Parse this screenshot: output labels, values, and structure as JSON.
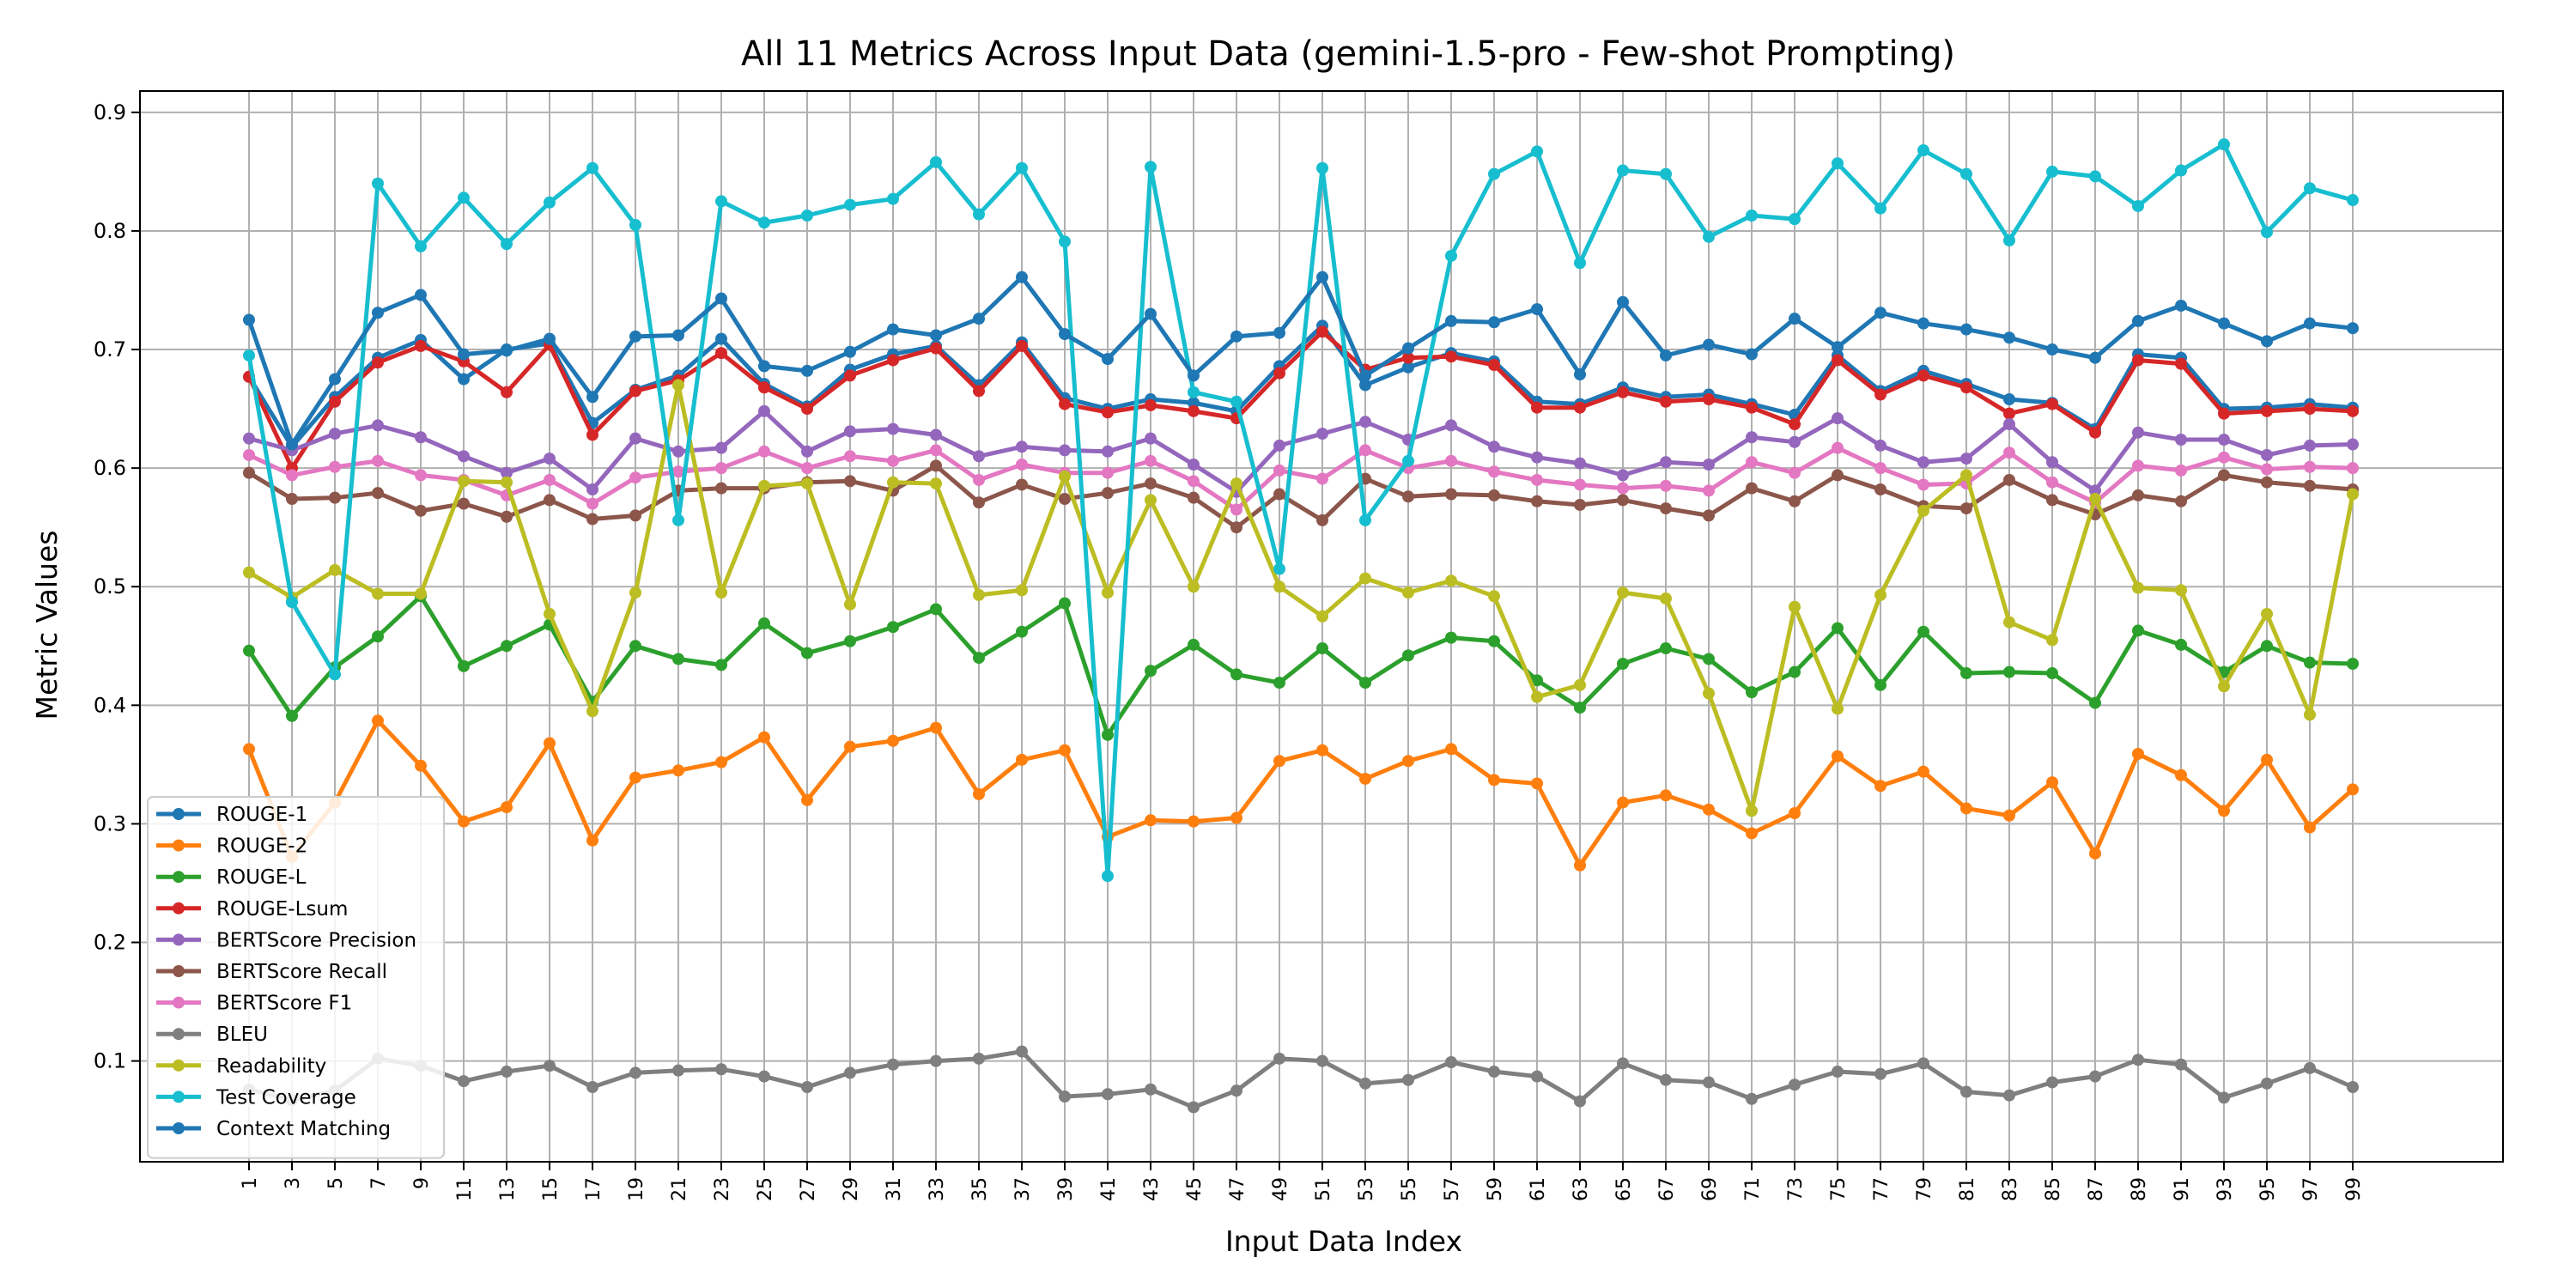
{
  "chart_data": {
    "type": "line",
    "title": "All 11 Metrics Across Input Data (gemini-1.5-pro - Few-shot Prompting)",
    "xlabel": "Input Data Index",
    "ylabel": "Metric Values",
    "ylim": [
      0.015,
      0.918
    ],
    "yticks": [
      "0.1",
      "0.2",
      "0.3",
      "0.4",
      "0.5",
      "0.6",
      "0.7",
      "0.8",
      "0.9"
    ],
    "grid": true,
    "legend_position": "lower-left",
    "x": [
      1,
      3,
      5,
      7,
      9,
      11,
      13,
      15,
      17,
      19,
      21,
      23,
      25,
      27,
      29,
      31,
      33,
      35,
      37,
      39,
      41,
      43,
      45,
      47,
      49,
      51,
      53,
      55,
      57,
      59,
      61,
      63,
      65,
      67,
      69,
      71,
      73,
      75,
      77,
      79,
      81,
      83,
      85,
      87,
      89,
      91,
      93,
      95,
      97,
      99
    ],
    "series": [
      {
        "name": "ROUGE-1",
        "color": "#1f77b4",
        "values": [
          0.677,
          0.618,
          0.66,
          0.693,
          0.708,
          0.675,
          0.7,
          0.705,
          0.638,
          0.666,
          0.678,
          0.709,
          0.671,
          0.652,
          0.683,
          0.696,
          0.703,
          0.67,
          0.706,
          0.659,
          0.65,
          0.658,
          0.655,
          0.648,
          0.686,
          0.72,
          0.67,
          0.685,
          0.697,
          0.69,
          0.656,
          0.654,
          0.668,
          0.66,
          0.662,
          0.654,
          0.645,
          0.695,
          0.665,
          0.682,
          0.671,
          0.658,
          0.655,
          0.633,
          0.696,
          0.693,
          0.65,
          0.651,
          0.654,
          0.651
        ]
      },
      {
        "name": "ROUGE-2",
        "color": "#ff7f0e",
        "values": [
          0.363,
          0.272,
          0.318,
          0.387,
          0.349,
          0.302,
          0.314,
          0.368,
          0.286,
          0.339,
          0.345,
          0.352,
          0.373,
          0.32,
          0.365,
          0.37,
          0.381,
          0.325,
          0.354,
          0.362,
          0.289,
          0.303,
          0.302,
          0.305,
          0.353,
          0.362,
          0.338,
          0.353,
          0.363,
          0.337,
          0.334,
          0.265,
          0.318,
          0.324,
          0.312,
          0.292,
          0.309,
          0.357,
          0.332,
          0.344,
          0.313,
          0.307,
          0.335,
          0.275,
          0.359,
          0.341,
          0.311,
          0.354,
          0.297,
          0.329
        ]
      },
      {
        "name": "ROUGE-L",
        "color": "#2ca02c",
        "values": [
          0.446,
          0.391,
          0.432,
          0.458,
          0.492,
          0.433,
          0.45,
          0.468,
          0.403,
          0.45,
          0.439,
          0.434,
          0.469,
          0.444,
          0.454,
          0.466,
          0.481,
          0.44,
          0.462,
          0.486,
          0.375,
          0.429,
          0.451,
          0.426,
          0.419,
          0.448,
          0.419,
          0.442,
          0.457,
          0.454,
          0.421,
          0.398,
          0.435,
          0.448,
          0.439,
          0.411,
          0.428,
          0.465,
          0.417,
          0.462,
          0.427,
          0.428,
          0.427,
          0.402,
          0.463,
          0.451,
          0.428,
          0.45,
          0.436,
          0.435
        ]
      },
      {
        "name": "ROUGE-Lsum",
        "color": "#d62728",
        "values": [
          0.677,
          0.6,
          0.656,
          0.689,
          0.703,
          0.69,
          0.664,
          0.704,
          0.628,
          0.665,
          0.674,
          0.697,
          0.668,
          0.65,
          0.678,
          0.691,
          0.701,
          0.665,
          0.703,
          0.654,
          0.647,
          0.653,
          0.648,
          0.642,
          0.68,
          0.715,
          0.683,
          0.693,
          0.694,
          0.687,
          0.651,
          0.651,
          0.664,
          0.656,
          0.658,
          0.651,
          0.637,
          0.691,
          0.662,
          0.678,
          0.668,
          0.646,
          0.654,
          0.63,
          0.691,
          0.688,
          0.646,
          0.648,
          0.65,
          0.648
        ]
      },
      {
        "name": "BERTScore Precision",
        "color": "#9467bd",
        "values": [
          0.625,
          0.615,
          0.629,
          0.636,
          0.626,
          0.61,
          0.596,
          0.608,
          0.582,
          0.625,
          0.614,
          0.617,
          0.648,
          0.614,
          0.631,
          0.633,
          0.628,
          0.61,
          0.618,
          0.615,
          0.614,
          0.625,
          0.603,
          0.58,
          0.619,
          0.629,
          0.639,
          0.624,
          0.636,
          0.618,
          0.609,
          0.604,
          0.594,
          0.605,
          0.603,
          0.626,
          0.622,
          0.642,
          0.619,
          0.605,
          0.608,
          0.637,
          0.605,
          0.581,
          0.63,
          0.624,
          0.624,
          0.611,
          0.619,
          0.62
        ]
      },
      {
        "name": "BERTScore Recall",
        "color": "#8c564b",
        "values": [
          0.596,
          0.574,
          0.575,
          0.579,
          0.564,
          0.57,
          0.559,
          0.573,
          0.557,
          0.56,
          0.581,
          0.583,
          0.583,
          0.588,
          0.589,
          0.581,
          0.602,
          0.571,
          0.586,
          0.574,
          0.579,
          0.587,
          0.575,
          0.55,
          0.578,
          0.556,
          0.591,
          0.576,
          0.578,
          0.577,
          0.572,
          0.569,
          0.573,
          0.566,
          0.56,
          0.583,
          0.572,
          0.594,
          0.582,
          0.568,
          0.566,
          0.59,
          0.573,
          0.561,
          0.577,
          0.572,
          0.594,
          0.588,
          0.585,
          0.582
        ]
      },
      {
        "name": "BERTScore F1",
        "color": "#e377c2",
        "values": [
          0.611,
          0.594,
          0.601,
          0.606,
          0.594,
          0.59,
          0.577,
          0.59,
          0.57,
          0.592,
          0.597,
          0.6,
          0.614,
          0.6,
          0.61,
          0.606,
          0.615,
          0.59,
          0.603,
          0.596,
          0.596,
          0.606,
          0.589,
          0.565,
          0.598,
          0.591,
          0.615,
          0.6,
          0.606,
          0.597,
          0.59,
          0.586,
          0.583,
          0.585,
          0.581,
          0.605,
          0.596,
          0.617,
          0.6,
          0.586,
          0.587,
          0.613,
          0.588,
          0.571,
          0.602,
          0.598,
          0.609,
          0.599,
          0.601,
          0.6
        ]
      },
      {
        "name": "BLEU",
        "color": "#7f7f7f",
        "values": [
          0.076,
          0.067,
          0.075,
          0.102,
          0.096,
          0.083,
          0.091,
          0.096,
          0.078,
          0.09,
          0.092,
          0.093,
          0.087,
          0.078,
          0.09,
          0.097,
          0.1,
          0.102,
          0.108,
          0.07,
          0.072,
          0.076,
          0.061,
          0.075,
          0.102,
          0.1,
          0.081,
          0.084,
          0.099,
          0.091,
          0.087,
          0.066,
          0.098,
          0.084,
          0.082,
          0.068,
          0.08,
          0.091,
          0.089,
          0.098,
          0.074,
          0.071,
          0.082,
          0.087,
          0.101,
          0.097,
          0.069,
          0.081,
          0.094,
          0.078
        ]
      },
      {
        "name": "Readability",
        "color": "#bcbd22",
        "values": [
          0.512,
          0.491,
          0.514,
          0.494,
          0.494,
          0.589,
          0.588,
          0.477,
          0.395,
          0.495,
          0.67,
          0.495,
          0.585,
          0.587,
          0.485,
          0.588,
          0.587,
          0.493,
          0.497,
          0.593,
          0.495,
          0.573,
          0.5,
          0.587,
          0.5,
          0.475,
          0.507,
          0.495,
          0.505,
          0.492,
          0.407,
          0.417,
          0.495,
          0.49,
          0.41,
          0.311,
          0.483,
          0.397,
          0.493,
          0.564,
          0.594,
          0.47,
          0.455,
          0.574,
          0.499,
          0.497,
          0.416,
          0.477,
          0.392,
          0.578
        ]
      },
      {
        "name": "Test Coverage",
        "color": "#17becf",
        "values": [
          0.695,
          0.487,
          0.426,
          0.84,
          0.787,
          0.828,
          0.789,
          0.824,
          0.853,
          0.805,
          0.556,
          0.825,
          0.807,
          0.813,
          0.822,
          0.827,
          0.858,
          0.814,
          0.853,
          0.791,
          0.256,
          0.854,
          0.664,
          0.656,
          0.515,
          0.853,
          0.556,
          0.606,
          0.779,
          0.848,
          0.867,
          0.773,
          0.851,
          0.848,
          0.795,
          0.813,
          0.81,
          0.857,
          0.819,
          0.868,
          0.848,
          0.792,
          0.85,
          0.846,
          0.821,
          0.851,
          0.873,
          0.799,
          0.836,
          0.826
        ]
      },
      {
        "name": "Context Matching",
        "color": "#1f77b4",
        "values": [
          0.725,
          0.62,
          0.675,
          0.731,
          0.746,
          0.696,
          0.699,
          0.709,
          0.66,
          0.711,
          0.712,
          0.743,
          0.686,
          0.682,
          0.698,
          0.717,
          0.712,
          0.726,
          0.761,
          0.713,
          0.692,
          0.73,
          0.678,
          0.711,
          0.714,
          0.761,
          0.678,
          0.701,
          0.724,
          0.723,
          0.734,
          0.679,
          0.74,
          0.695,
          0.704,
          0.696,
          0.726,
          0.702,
          0.731,
          0.722,
          0.717,
          0.71,
          0.7,
          0.693,
          0.724,
          0.737,
          0.722,
          0.707,
          0.722,
          0.718
        ]
      }
    ]
  }
}
